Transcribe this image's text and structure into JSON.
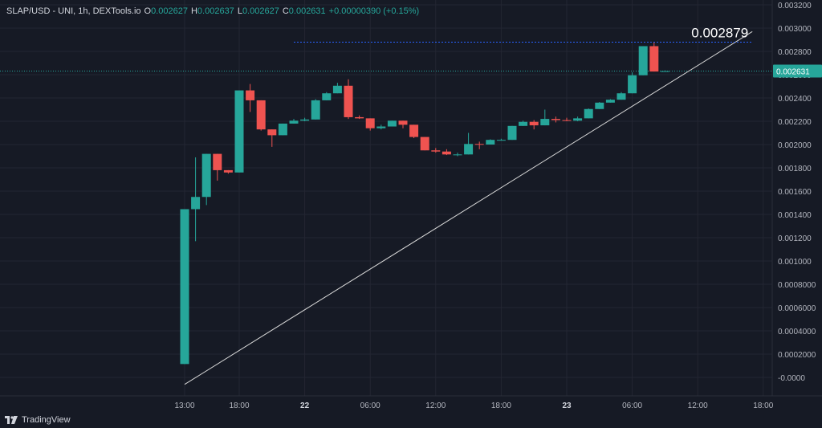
{
  "header": {
    "symbol": "SLAP/USD - UNI, 1h, DEXTools.io",
    "open_label": "O",
    "open": "0.002627",
    "high_label": "H",
    "high": "0.002637",
    "low_label": "L",
    "low": "0.002627",
    "close_label": "C",
    "close": "0.002631",
    "change": "+0.00000390 (+0.15%)"
  },
  "brand": {
    "name": "TradingView"
  },
  "annotation": {
    "label": "0.002879",
    "value": 0.002879
  },
  "current_price": {
    "label": "0.002631",
    "value": 0.002631
  },
  "colors": {
    "up": "#26a69a",
    "down": "#ef5350",
    "background": "#161a25",
    "grid": "#232632",
    "axis_text": "#b2b5be",
    "trendline": "#d9d9d9",
    "dotted_line": "#2962ff",
    "price_tag": "#26a69a"
  },
  "chart_data": {
    "type": "candlestick",
    "title": "",
    "xlabel": "",
    "ylabel": "",
    "ylim": [
      -0.0001,
      0.0032
    ],
    "grid": true,
    "y_ticks": [
      "0.003200",
      "0.003000",
      "0.002800",
      "0.002600",
      "0.002400",
      "0.002200",
      "0.002000",
      "0.001800",
      "0.001600",
      "0.001400",
      "0.001200",
      "0.001000",
      "0.0008000",
      "0.0006000",
      "0.0004000",
      "0.0002000",
      "-0.0000"
    ],
    "y_tick_values": [
      0.0032,
      0.003,
      0.0028,
      0.0026,
      0.0024,
      0.0022,
      0.002,
      0.0018,
      0.0016,
      0.0014,
      0.0012,
      0.001,
      0.0008,
      0.0006,
      0.0004,
      0.0002,
      0
    ],
    "x_ticks": [
      {
        "label": "13:00",
        "hour": 13,
        "bold": false
      },
      {
        "label": "18:00",
        "hour": 18,
        "bold": false
      },
      {
        "label": "22",
        "hour": 24,
        "bold": true
      },
      {
        "label": "06:00",
        "hour": 30,
        "bold": false
      },
      {
        "label": "12:00",
        "hour": 36,
        "bold": false
      },
      {
        "label": "18:00",
        "hour": 42,
        "bold": false
      },
      {
        "label": "23",
        "hour": 48,
        "bold": true
      },
      {
        "label": "06:00",
        "hour": 54,
        "bold": false
      },
      {
        "label": "12:00",
        "hour": 60,
        "bold": false
      },
      {
        "label": "18:00",
        "hour": 66,
        "bold": false
      }
    ],
    "candles": [
      {
        "hour": 13,
        "o": 0.000115,
        "h": 0.001445,
        "l": 0.000115,
        "c": 0.001445
      },
      {
        "hour": 14,
        "o": 0.001445,
        "h": 0.00189,
        "l": 0.00117,
        "c": 0.00155
      },
      {
        "hour": 15,
        "o": 0.00155,
        "h": 0.00192,
        "l": 0.00148,
        "c": 0.00192
      },
      {
        "hour": 16,
        "o": 0.00192,
        "h": 0.00192,
        "l": 0.00169,
        "c": 0.00178
      },
      {
        "hour": 17,
        "o": 0.00178,
        "h": 0.00178,
        "l": 0.00175,
        "c": 0.00176
      },
      {
        "hour": 18,
        "o": 0.00176,
        "h": 0.002465,
        "l": 0.00176,
        "c": 0.002465
      },
      {
        "hour": 19,
        "o": 0.002465,
        "h": 0.00252,
        "l": 0.00228,
        "c": 0.00238
      },
      {
        "hour": 20,
        "o": 0.00238,
        "h": 0.00238,
        "l": 0.00212,
        "c": 0.00213
      },
      {
        "hour": 21,
        "o": 0.00213,
        "h": 0.00213,
        "l": 0.00198,
        "c": 0.00208
      },
      {
        "hour": 22,
        "o": 0.00208,
        "h": 0.00218,
        "l": 0.00208,
        "c": 0.00218
      },
      {
        "hour": 23,
        "o": 0.00218,
        "h": 0.00222,
        "l": 0.00218,
        "c": 0.002205
      },
      {
        "hour": 24,
        "o": 0.002205,
        "h": 0.00223,
        "l": 0.0022,
        "c": 0.002215
      },
      {
        "hour": 25,
        "o": 0.002215,
        "h": 0.00239,
        "l": 0.002215,
        "c": 0.00238
      },
      {
        "hour": 26,
        "o": 0.00238,
        "h": 0.00245,
        "l": 0.00238,
        "c": 0.00244
      },
      {
        "hour": 27,
        "o": 0.00244,
        "h": 0.00253,
        "l": 0.00244,
        "c": 0.002505
      },
      {
        "hour": 28,
        "o": 0.002505,
        "h": 0.00256,
        "l": 0.00222,
        "c": 0.002235
      },
      {
        "hour": 29,
        "o": 0.002235,
        "h": 0.00225,
        "l": 0.00222,
        "c": 0.002225
      },
      {
        "hour": 30,
        "o": 0.002225,
        "h": 0.002225,
        "l": 0.00212,
        "c": 0.00214
      },
      {
        "hour": 31,
        "o": 0.00214,
        "h": 0.00217,
        "l": 0.00213,
        "c": 0.002155
      },
      {
        "hour": 32,
        "o": 0.002155,
        "h": 0.002205,
        "l": 0.002155,
        "c": 0.002205
      },
      {
        "hour": 33,
        "o": 0.002205,
        "h": 0.002205,
        "l": 0.00214,
        "c": 0.00217
      },
      {
        "hour": 34,
        "o": 0.00217,
        "h": 0.00217,
        "l": 0.002055,
        "c": 0.002065
      },
      {
        "hour": 35,
        "o": 0.002065,
        "h": 0.002065,
        "l": 0.00195,
        "c": 0.00195
      },
      {
        "hour": 36,
        "o": 0.00195,
        "h": 0.00197,
        "l": 0.00193,
        "c": 0.00194
      },
      {
        "hour": 37,
        "o": 0.00194,
        "h": 0.00196,
        "l": 0.00191,
        "c": 0.001915
      },
      {
        "hour": 38,
        "o": 0.001915,
        "h": 0.00193,
        "l": 0.0019,
        "c": 0.001915
      },
      {
        "hour": 39,
        "o": 0.001915,
        "h": 0.0021,
        "l": 0.001915,
        "c": 0.002005
      },
      {
        "hour": 40,
        "o": 0.002005,
        "h": 0.002025,
        "l": 0.00196,
        "c": 0.002
      },
      {
        "hour": 41,
        "o": 0.002,
        "h": 0.002045,
        "l": 0.002,
        "c": 0.00204
      },
      {
        "hour": 42,
        "o": 0.00204,
        "h": 0.00205,
        "l": 0.002035,
        "c": 0.00204
      },
      {
        "hour": 43,
        "o": 0.00204,
        "h": 0.00216,
        "l": 0.00204,
        "c": 0.00216
      },
      {
        "hour": 44,
        "o": 0.00216,
        "h": 0.002205,
        "l": 0.00216,
        "c": 0.002195
      },
      {
        "hour": 45,
        "o": 0.002195,
        "h": 0.00221,
        "l": 0.00213,
        "c": 0.002165
      },
      {
        "hour": 46,
        "o": 0.002165,
        "h": 0.0023,
        "l": 0.002165,
        "c": 0.00222
      },
      {
        "hour": 47,
        "o": 0.00222,
        "h": 0.00224,
        "l": 0.00219,
        "c": 0.00221
      },
      {
        "hour": 48,
        "o": 0.00221,
        "h": 0.00223,
        "l": 0.0022,
        "c": 0.002205
      },
      {
        "hour": 49,
        "o": 0.002205,
        "h": 0.00224,
        "l": 0.0022,
        "c": 0.002225
      },
      {
        "hour": 50,
        "o": 0.002225,
        "h": 0.00231,
        "l": 0.002225,
        "c": 0.002305
      },
      {
        "hour": 51,
        "o": 0.002305,
        "h": 0.002365,
        "l": 0.002305,
        "c": 0.00236
      },
      {
        "hour": 52,
        "o": 0.00236,
        "h": 0.00239,
        "l": 0.00236,
        "c": 0.002385
      },
      {
        "hour": 53,
        "o": 0.002385,
        "h": 0.00245,
        "l": 0.002385,
        "c": 0.00244
      },
      {
        "hour": 54,
        "o": 0.00244,
        "h": 0.00262,
        "l": 0.00244,
        "c": 0.002595
      },
      {
        "hour": 55,
        "o": 0.002595,
        "h": 0.002845,
        "l": 0.002595,
        "c": 0.002845
      },
      {
        "hour": 56,
        "o": 0.002845,
        "h": 0.002879,
        "l": 0.002627,
        "c": 0.002627
      },
      {
        "hour": 57,
        "o": 0.002627,
        "h": 0.002637,
        "l": 0.002627,
        "c": 0.002631
      }
    ],
    "trendline": {
      "from": {
        "hour": 13,
        "price": -6e-05
      },
      "to": {
        "hour": 65,
        "price": 0.00297
      }
    },
    "dotted_line": {
      "from_hour": 23,
      "to_hour": 65,
      "price": 0.002879
    }
  }
}
